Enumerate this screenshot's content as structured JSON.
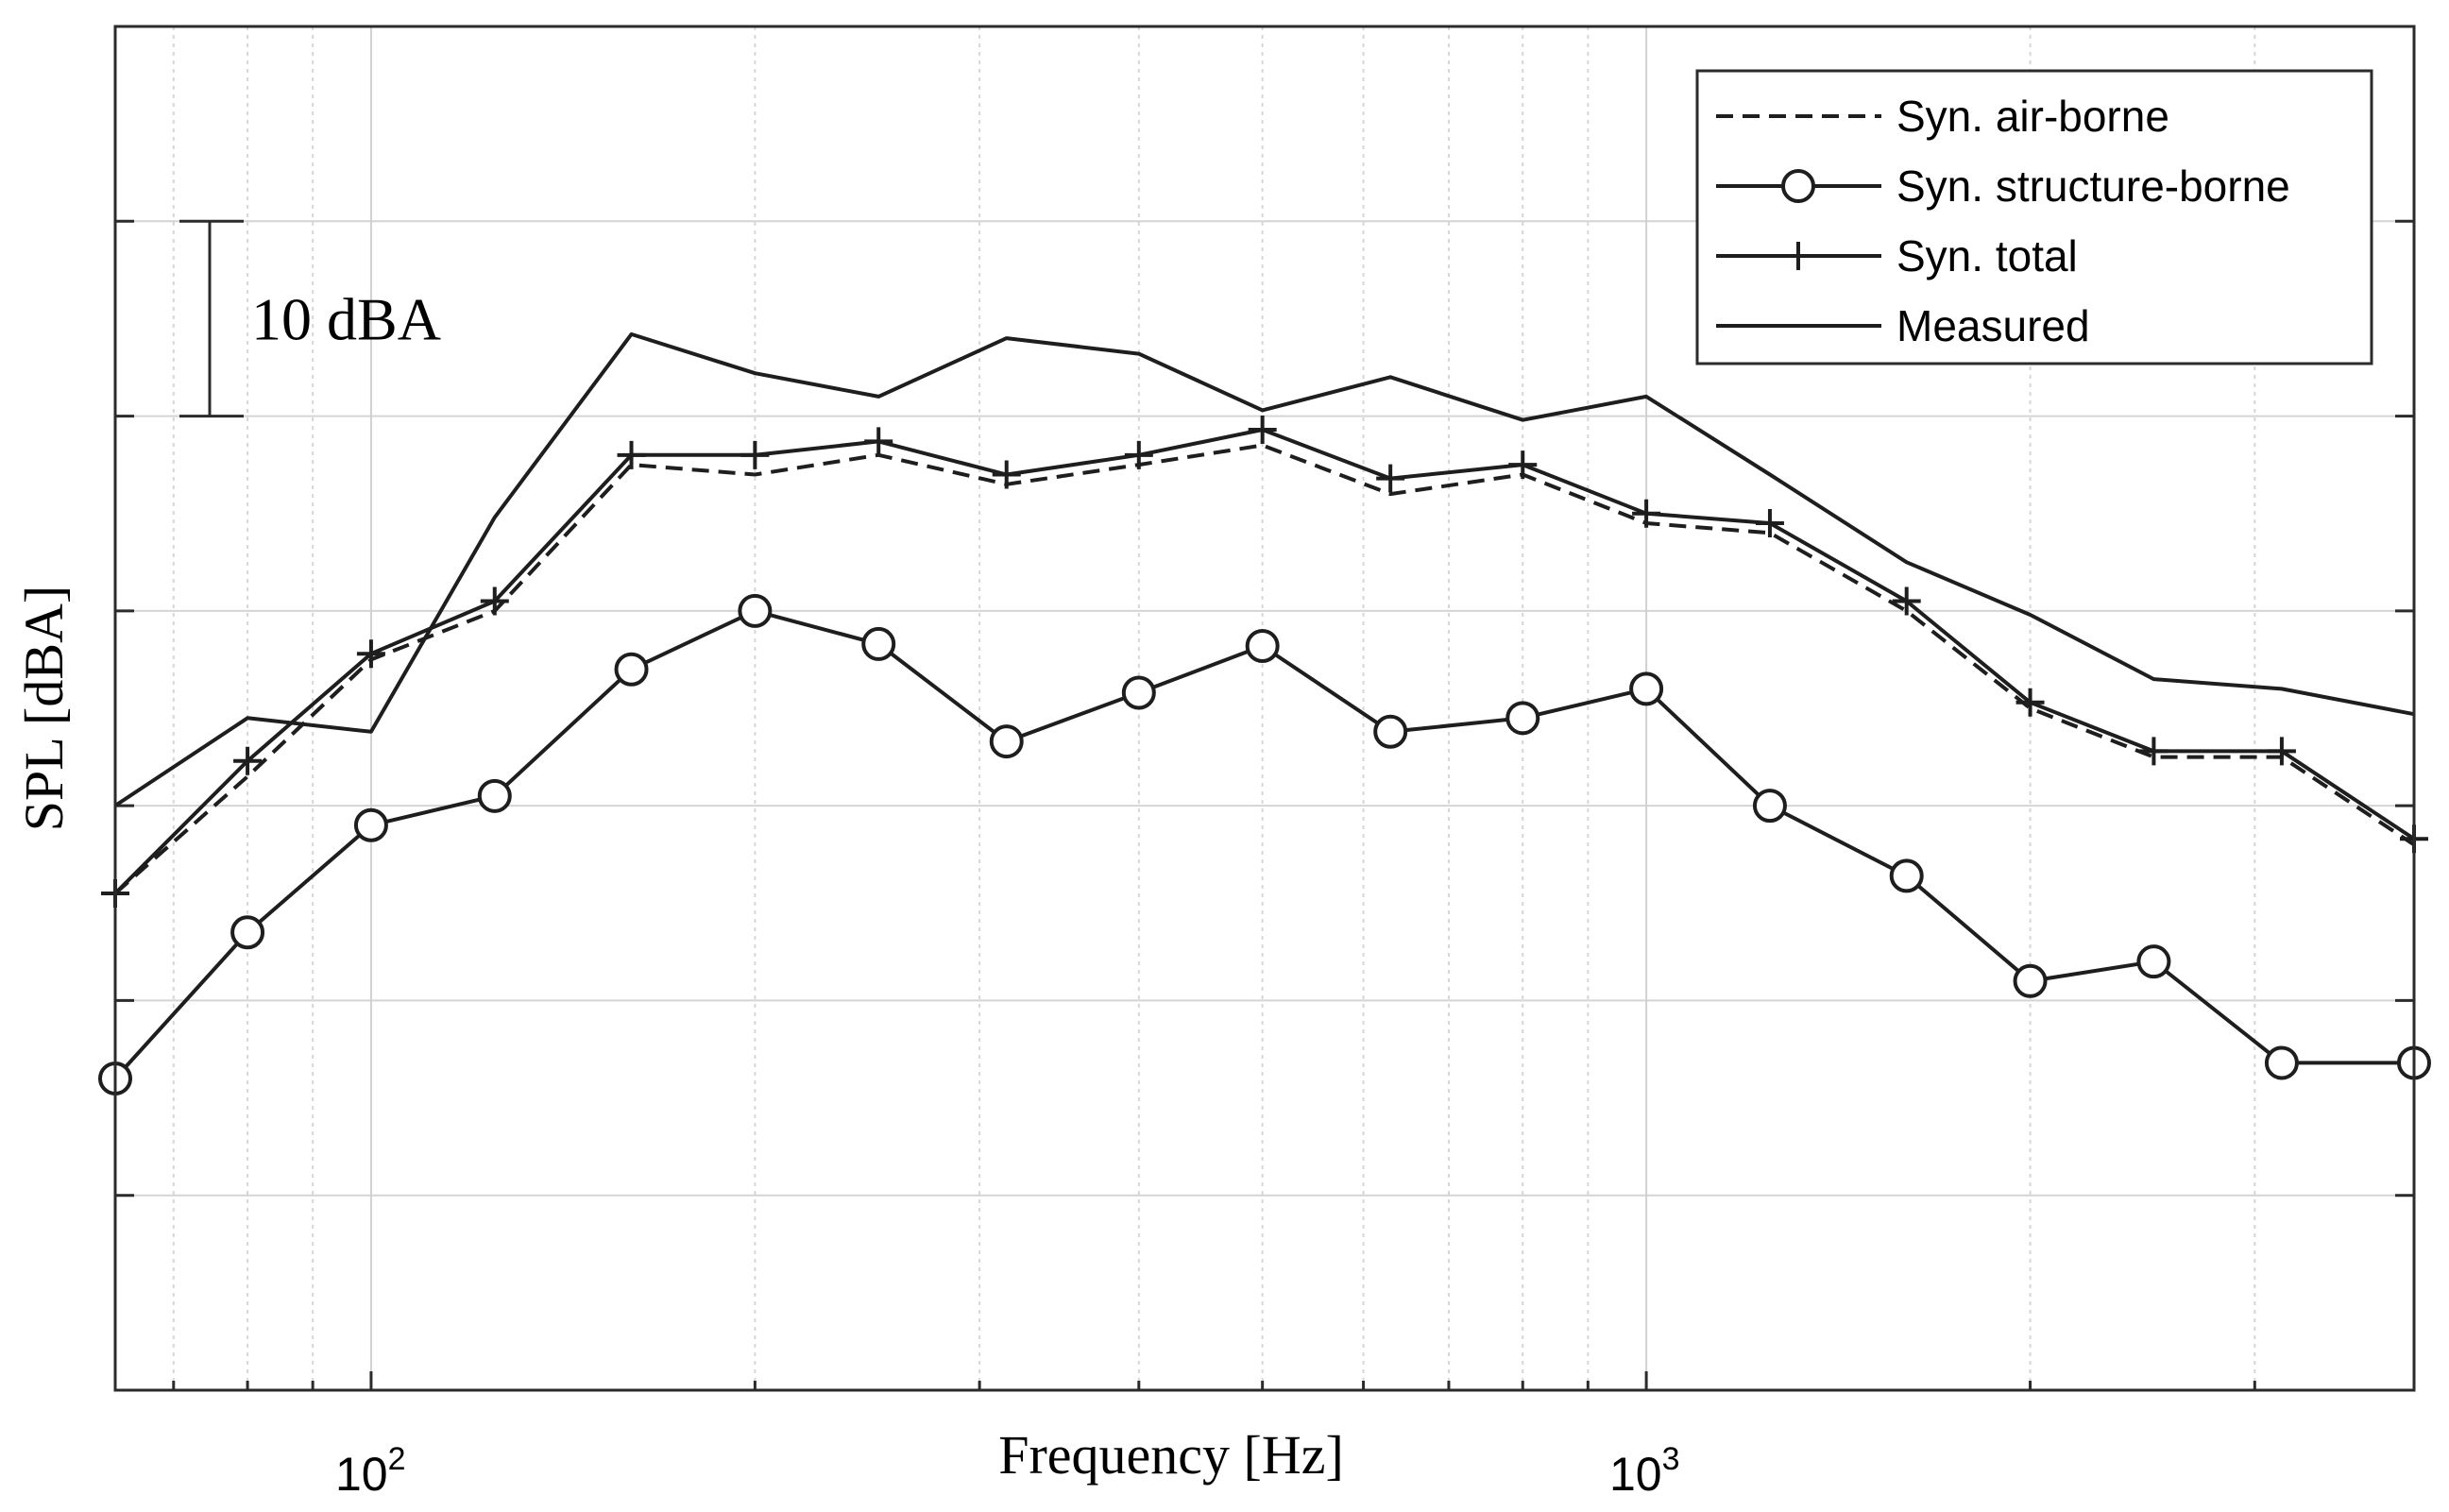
{
  "chart_data": {
    "type": "line",
    "title": "",
    "xlabel": "Frequency [Hz]",
    "ylabel": "SPL [dBA]",
    "xscale": "log",
    "xlim": [
      63,
      4000
    ],
    "ylim": [
      0,
      70
    ],
    "x_ticks": [
      {
        "base": "10",
        "exp": "2",
        "value": 100
      },
      {
        "base": "10",
        "exp": "3",
        "value": 1000
      }
    ],
    "grid": true,
    "scale_bar": {
      "label": "10 dBA",
      "from": 50,
      "to": 60
    },
    "x": [
      63,
      80,
      100,
      125,
      160,
      200,
      250,
      315,
      400,
      500,
      630,
      800,
      1000,
      1250,
      1600,
      2000,
      2500,
      3150,
      4000
    ],
    "legend_position": "top-right",
    "series": [
      {
        "name": "Syn. air-borne",
        "style": "dashed",
        "marker": "none",
        "values": [
          25.5,
          31.5,
          37.5,
          40,
          47.5,
          47,
          48,
          46.5,
          47.5,
          48.5,
          46,
          47,
          44.5,
          44,
          40,
          35,
          32.5,
          32.5,
          28
        ]
      },
      {
        "name": "Syn. structure-borne",
        "style": "solid",
        "marker": "circle",
        "values": [
          16,
          23.5,
          29,
          30.5,
          37,
          40,
          38.3,
          33.3,
          35.8,
          38.2,
          33.8,
          34.5,
          36,
          30,
          26.4,
          21,
          22,
          16.8,
          16.8
        ]
      },
      {
        "name": "Syn. total",
        "style": "solid",
        "marker": "plus",
        "values": [
          25.5,
          32.3,
          37.8,
          40.5,
          48,
          48,
          48.7,
          47,
          48,
          49.3,
          46.8,
          47.5,
          45,
          44.5,
          40.5,
          35.3,
          32.8,
          32.8,
          28.3
        ]
      },
      {
        "name": "Measured",
        "style": "solid",
        "marker": "none",
        "values": [
          30,
          34.5,
          33.8,
          44.8,
          54.2,
          52.2,
          51,
          54,
          53.2,
          50.3,
          52,
          49.8,
          51,
          47,
          42.5,
          39.8,
          36.5,
          36,
          34.7
        ]
      }
    ]
  }
}
